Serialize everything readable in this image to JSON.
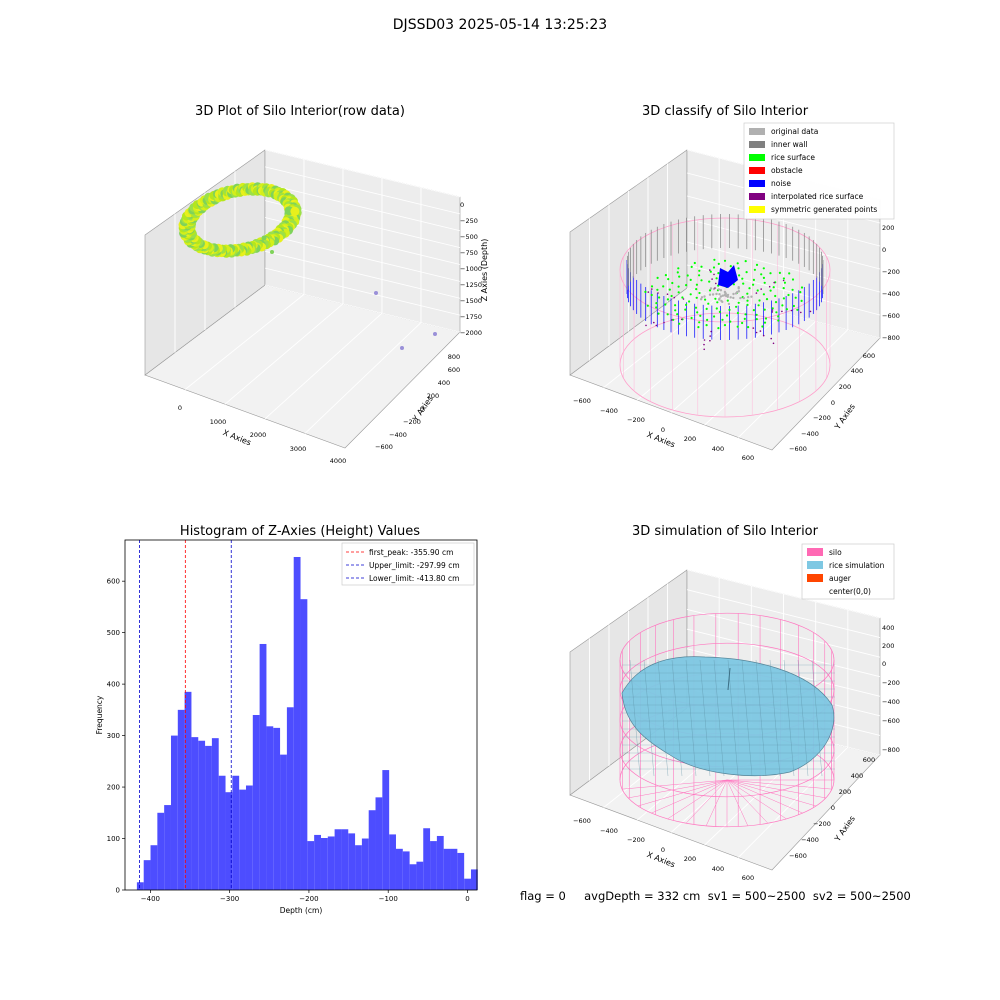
{
  "suptitle": "DJSSD03 2025-05-14 13:25:23",
  "panels": {
    "raw": {
      "title": "3D Plot of Silo Interior(row data)"
    },
    "classify": {
      "title": "3D classify of Silo Interior"
    },
    "hist": {
      "title": "Histogram of Z-Axies (Height) Values"
    },
    "sim": {
      "title": "3D simulation of Silo Interior"
    }
  },
  "footer": "flag = 0     avgDepth = 332 cm  sv1 = 500~2500  sv2 = 500~2500",
  "colors": {
    "hist_bar": "#4d4dff",
    "first_peak": "#ff0000",
    "limits": "#0000cc",
    "silo": "#ff69b4",
    "rice": "#7ec8e3",
    "auger": "#ff4500",
    "inner_wall": "#808080",
    "original": "#b0b0b0",
    "rice_surface": "#00ff00",
    "obstacle": "#ff0000",
    "noise": "#0000ff",
    "interp": "#800080",
    "symmetric": "#ffff00"
  },
  "chart_data": [
    {
      "type": "scatter",
      "title": "3D Plot of Silo Interior(row data)",
      "xlabel": "X Axies",
      "ylabel": "Y Axies",
      "zlabel": "Z Axies (Depth)",
      "x_ticks": [
        "0",
        "1000",
        "2000",
        "3000",
        "4000"
      ],
      "y_ticks": [
        "−600",
        "−400",
        "−200",
        "0",
        "200",
        "400",
        "600",
        "800"
      ],
      "z_ticks": [
        "0",
        "−250",
        "−500",
        "−750",
        "−1000",
        "−1250",
        "−1500",
        "−1750",
        "−2000"
      ],
      "outliers": [
        {
          "x": 2900,
          "y": -300,
          "z": -1600
        },
        {
          "x": 3600,
          "y": -400,
          "z": -2000
        },
        {
          "x": 4100,
          "y": -300,
          "z": -1950
        }
      ]
    },
    {
      "type": "scatter",
      "title": "3D classify of Silo Interior",
      "xlabel": "X Axies",
      "ylabel": "Y Axies",
      "zlabel": "Z Axies (Depth)",
      "x_ticks": [
        "−600",
        "−400",
        "−200",
        "0",
        "200",
        "400",
        "600"
      ],
      "y_ticks": [
        "−600",
        "−400",
        "−200",
        "0",
        "200",
        "400",
        "600"
      ],
      "z_ticks": [
        "200",
        "0",
        "−200",
        "−400",
        "−600",
        "−800"
      ],
      "legend": [
        "original data",
        "inner wall",
        "rice surface",
        "obstacle",
        "noise",
        "interpolated rice surface",
        "symmetric generated points"
      ],
      "legend_position": "top-right"
    },
    {
      "type": "bar",
      "title": "Histogram of Z-Axies (Height) Values",
      "xlabel": "Depth (cm)",
      "ylabel": "Frequency",
      "xlim": [
        -432,
        12
      ],
      "ylim": [
        0,
        680
      ],
      "bin_start": -417,
      "bin_width": 8.6,
      "values": [
        15,
        58,
        87,
        150,
        165,
        300,
        350,
        385,
        297,
        290,
        280,
        295,
        222,
        190,
        222,
        195,
        203,
        340,
        478,
        318,
        315,
        263,
        355,
        647,
        565,
        95,
        107,
        101,
        104,
        118,
        118,
        110,
        87,
        100,
        155,
        180,
        233,
        108,
        80,
        75,
        50,
        55,
        120,
        95,
        105,
        80,
        80,
        72,
        22,
        40
      ],
      "x_ticks": [
        -400,
        -300,
        -200,
        -100,
        0
      ],
      "y_ticks": [
        0,
        100,
        200,
        300,
        400,
        500,
        600
      ],
      "vlines": [
        {
          "name": "first_peak: -355.90 cm",
          "x": -355.9,
          "color": "#ff0000"
        },
        {
          "name": "Upper_limit: -297.99 cm",
          "x": -297.99,
          "color": "#0000cc"
        },
        {
          "name": "Lower_limit: -413.80 cm",
          "x": -413.8,
          "color": "#0000cc"
        }
      ],
      "legend_position": "top-right"
    },
    {
      "type": "surface",
      "title": "3D simulation of Silo Interior",
      "xlabel": "X Axies",
      "ylabel": "Y Axies",
      "zlabel": "Z Axies (Depth)",
      "x_ticks": [
        "−600",
        "−400",
        "−200",
        "0",
        "200",
        "400",
        "600"
      ],
      "y_ticks": [
        "−600",
        "−400",
        "−200",
        "0",
        "200",
        "400",
        "600"
      ],
      "z_ticks": [
        "400",
        "200",
        "0",
        "−200",
        "−400",
        "−600",
        "−800"
      ],
      "legend": [
        "silo",
        "rice simulation",
        "auger",
        "center(0,0)"
      ],
      "legend_position": "top-right"
    }
  ]
}
